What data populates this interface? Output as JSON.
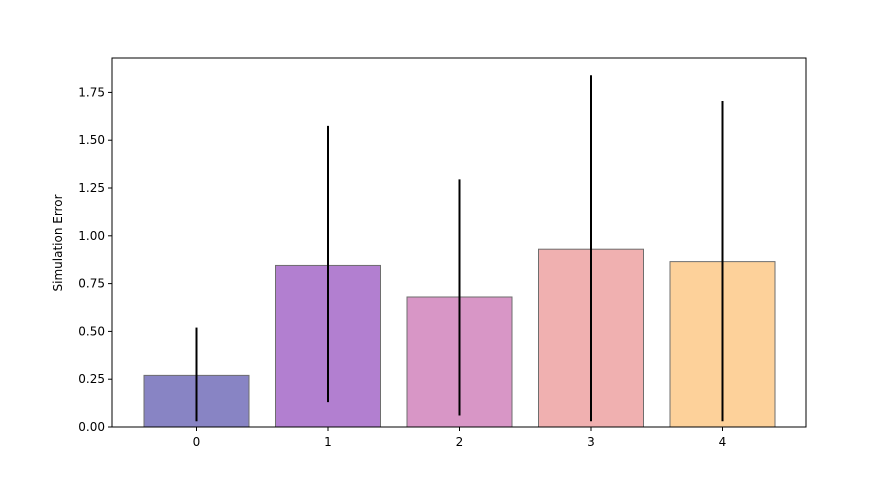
{
  "chart_data": {
    "type": "bar",
    "categories": [
      "0",
      "1",
      "2",
      "3",
      "4"
    ],
    "values": [
      0.27,
      0.845,
      0.68,
      0.93,
      0.865
    ],
    "error_low": [
      0.03,
      0.13,
      0.06,
      0.03,
      0.03
    ],
    "error_high": [
      0.52,
      1.575,
      1.295,
      1.84,
      1.705
    ],
    "colors": [
      "#8884c4",
      "#b27fd0",
      "#d896c6",
      "#f0b0b0",
      "#fdd19a"
    ],
    "title": "",
    "xlabel": "",
    "ylabel": "Simulation Error",
    "ylim": [
      0,
      1.93
    ],
    "yticks": [
      0.0,
      0.25,
      0.5,
      0.75,
      1.0,
      1.25,
      1.5,
      1.75
    ],
    "ytick_labels": [
      "0.00",
      "0.25",
      "0.50",
      "0.75",
      "1.00",
      "1.25",
      "1.50",
      "1.75"
    ],
    "grid": false,
    "legend": "none"
  }
}
